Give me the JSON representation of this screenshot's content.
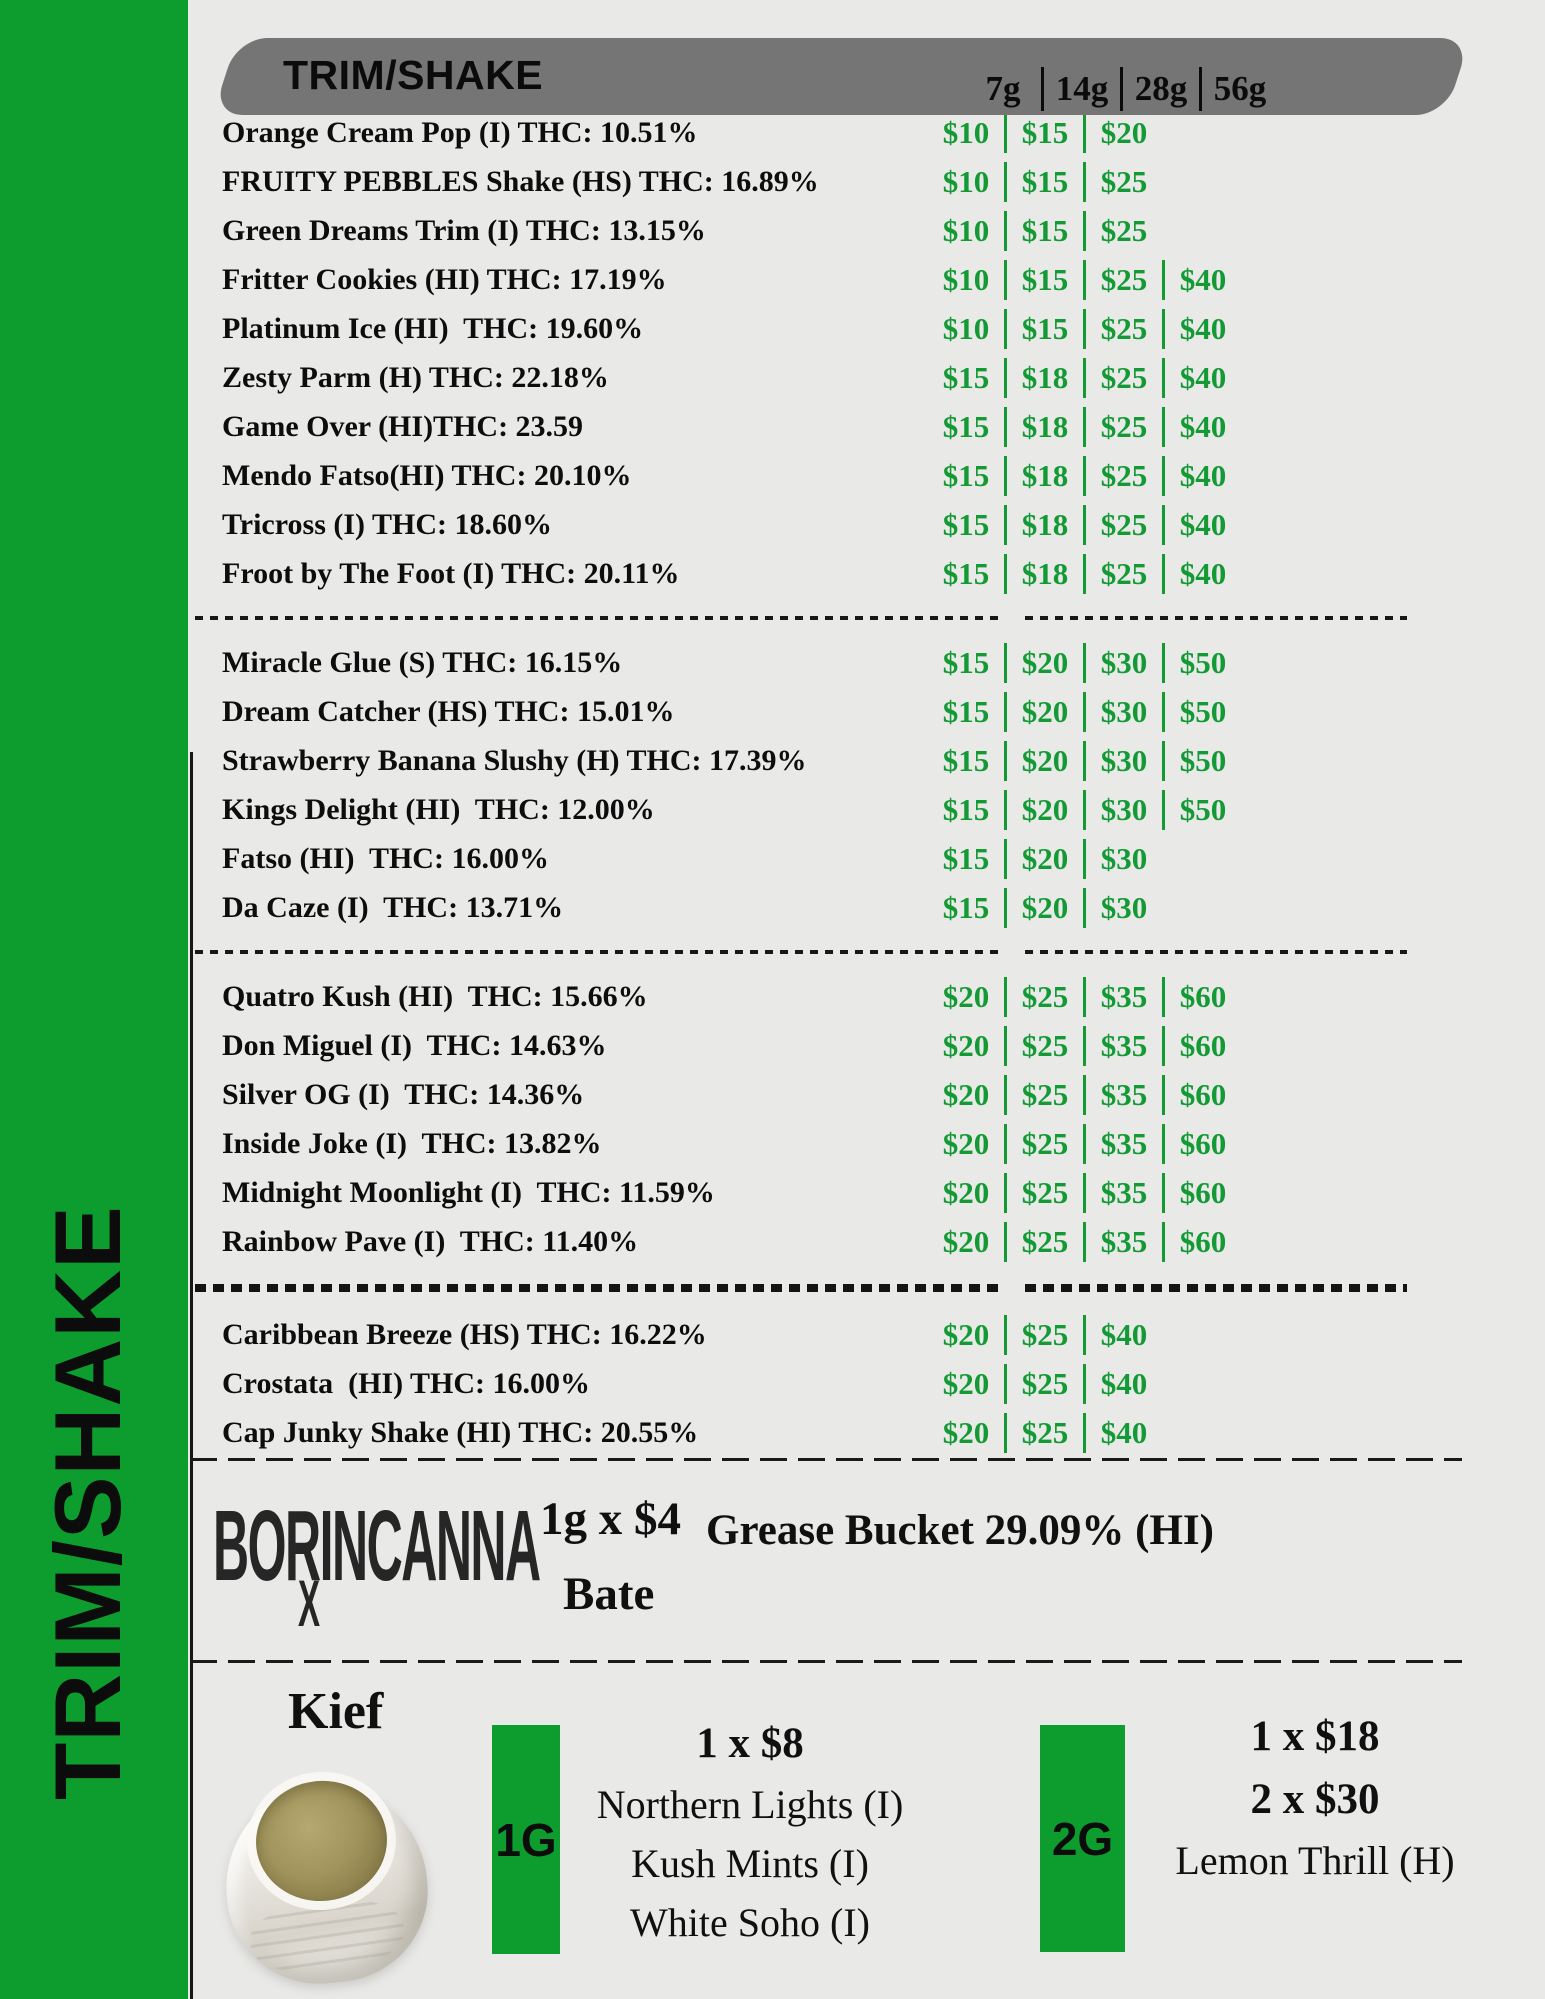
{
  "page": {
    "sidebar_label": "TRIM/SHAKE",
    "colors": {
      "sidebar_green": "#0d9c2e",
      "price_green": "#149a35",
      "header_gray": "#757575",
      "background": "#e9e9e8"
    }
  },
  "header": {
    "title": "TRIM/SHAKE",
    "weights": [
      "7g",
      "14g",
      "28g",
      "56g"
    ]
  },
  "menu": {
    "groups": [
      {
        "rows": [
          {
            "name": "Orange Cream Pop (I) THC: 10.51%",
            "prices": [
              "$10",
              "$15",
              "$20"
            ]
          },
          {
            "name": "FRUITY PEBBLES Shake (HS) THC: 16.89%",
            "prices": [
              "$10",
              "$15",
              "$25"
            ]
          },
          {
            "name": "Green Dreams Trim (I) THC: 13.15%",
            "prices": [
              "$10",
              "$15",
              "$25"
            ]
          },
          {
            "name": "Fritter Cookies (HI) THC: 17.19%",
            "prices": [
              "$10",
              "$15",
              "$25",
              "$40"
            ]
          },
          {
            "name": "Platinum Ice (HI)  THC: 19.60%",
            "prices": [
              "$10",
              "$15",
              "$25",
              "$40"
            ]
          },
          {
            "name": "Zesty Parm (H) THC: 22.18%",
            "prices": [
              "$15",
              "$18",
              "$25",
              "$40"
            ]
          },
          {
            "name": "Game Over (HI)THC: 23.59",
            "prices": [
              "$15",
              "$18",
              "$25",
              "$40"
            ]
          },
          {
            "name": "Mendo Fatso(HI) THC: 20.10%",
            "prices": [
              "$15",
              "$18",
              "$25",
              "$40"
            ]
          },
          {
            "name": "Tricross (I) THC: 18.60%",
            "prices": [
              "$15",
              "$18",
              "$25",
              "$40"
            ]
          },
          {
            "name": "Froot by The Foot (I) THC: 20.11%",
            "prices": [
              "$15",
              "$18",
              "$25",
              "$40"
            ]
          }
        ]
      },
      {
        "rows": [
          {
            "name": "Miracle Glue (S) THC: 16.15%",
            "prices": [
              "$15",
              "$20",
              "$30",
              "$50"
            ]
          },
          {
            "name": "Dream Catcher (HS) THC: 15.01%",
            "prices": [
              "$15",
              "$20",
              "$30",
              "$50"
            ]
          },
          {
            "name": "Strawberry Banana Slushy (H) THC: 17.39%",
            "prices": [
              "$15",
              "$20",
              "$30",
              "$50"
            ]
          },
          {
            "name": "Kings Delight (HI)  THC: 12.00%",
            "prices": [
              "$15",
              "$20",
              "$30",
              "$50"
            ]
          },
          {
            "name": "Fatso (HI)  THC: 16.00%",
            "prices": [
              "$15",
              "$20",
              "$30"
            ]
          },
          {
            "name": "Da Caze (I)  THC: 13.71%",
            "prices": [
              "$15",
              "$20",
              "$30"
            ]
          }
        ]
      },
      {
        "rows": [
          {
            "name": "Quatro Kush (HI)  THC: 15.66%",
            "prices": [
              "$20",
              "$25",
              "$35",
              "$60"
            ]
          },
          {
            "name": "Don Miguel (I)  THC: 14.63%",
            "prices": [
              "$20",
              "$25",
              "$35",
              "$60"
            ]
          },
          {
            "name": "Silver OG (I)  THC: 14.36%",
            "prices": [
              "$20",
              "$25",
              "$35",
              "$60"
            ]
          },
          {
            "name": "Inside Joke (I)  THC: 13.82%",
            "prices": [
              "$20",
              "$25",
              "$35",
              "$60"
            ]
          },
          {
            "name": "Midnight Moonlight (I)  THC: 11.59%",
            "prices": [
              "$20",
              "$25",
              "$35",
              "$60"
            ]
          },
          {
            "name": "Rainbow Pave (I)  THC: 11.40%",
            "prices": [
              "$20",
              "$25",
              "$35",
              "$60"
            ]
          }
        ]
      },
      {
        "rows": [
          {
            "name": "Caribbean Breeze (HS) THC: 16.22%",
            "prices": [
              "$20",
              "$25",
              "$40"
            ]
          },
          {
            "name": "Crostata  (HI) THC: 16.00%",
            "prices": [
              "$20",
              "$25",
              "$40"
            ]
          },
          {
            "name": "Cap Junky Shake (HI) THC: 20.55%",
            "prices": [
              "$20",
              "$25",
              "$40"
            ]
          }
        ]
      }
    ]
  },
  "borincanna": {
    "brand_prefix": "BO",
    "brand_rx": "R",
    "brand_rx_sub": "X",
    "brand_suffix": "INCANNA",
    "deal_line1": "1g x $4",
    "deal_line2": "Bate",
    "item": "Grease Bucket 29.09% (HI)"
  },
  "kief": {
    "title": "Kief",
    "jar_image": "kief-jar-photo",
    "options": [
      {
        "size": "1G",
        "deals": [
          "1 x $8"
        ],
        "strains": [
          "Northern Lights (I)",
          "Kush Mints (I)",
          "White Soho (I)"
        ]
      },
      {
        "size": "2G",
        "deals": [
          "1 x $18",
          "2 x $30"
        ],
        "strains": [
          "Lemon Thrill (H)"
        ]
      }
    ]
  }
}
